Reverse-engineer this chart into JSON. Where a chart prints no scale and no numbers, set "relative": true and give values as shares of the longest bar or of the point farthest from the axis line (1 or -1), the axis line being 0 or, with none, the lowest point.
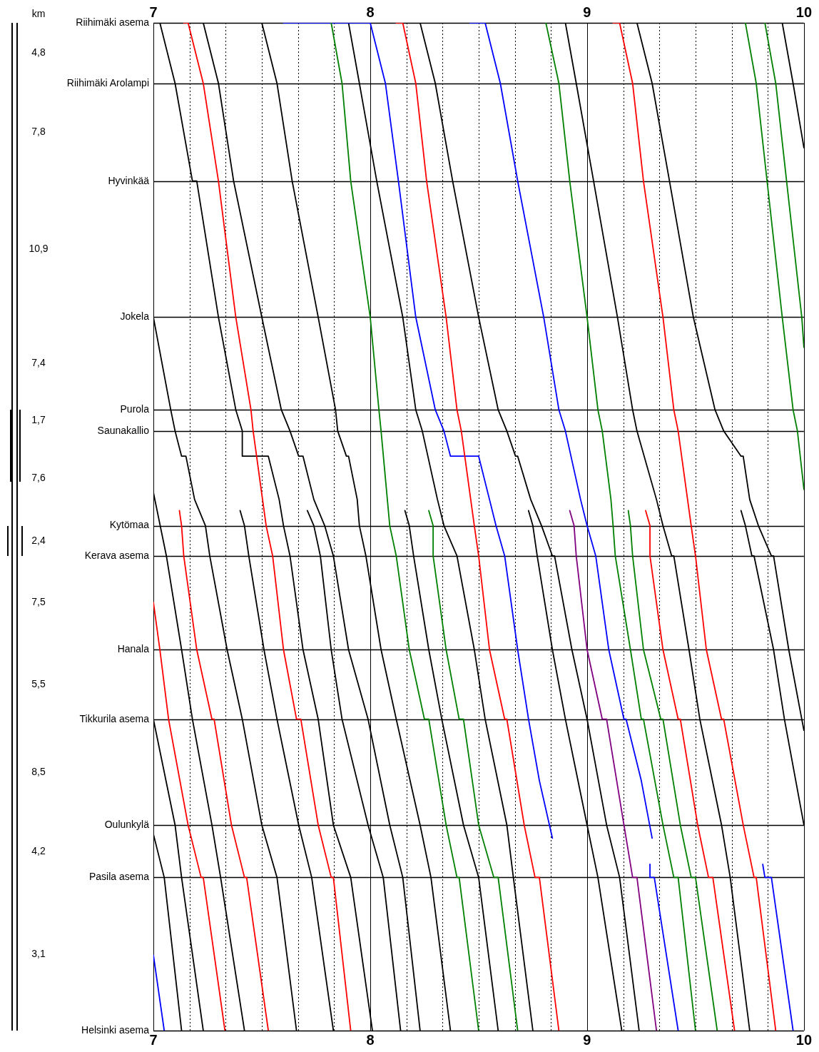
{
  "chart_data": {
    "type": "line",
    "grid": "x",
    "marker": "none",
    "relative": true,
    "xlim": [
      7,
      10
    ],
    "xticks": [
      7,
      {
        "value": 7.1667,
        "label": null
      },
      {
        "value": 7.3333,
        "label": null
      },
      {
        "value": 7.5,
        "label": null
      },
      {
        "value": 7.6667,
        "label": null
      },
      {
        "value": 7.8333,
        "label": null
      },
      8,
      {
        "value": 8.1667,
        "label": null
      },
      {
        "value": 8.3333,
        "label": null
      },
      {
        "value": 8.5,
        "label": null
      },
      {
        "value": 8.6667,
        "label": null
      },
      {
        "value": 8.8333,
        "label": null
      },
      9,
      {
        "value": 9.1667,
        "label": null
      },
      {
        "value": 9.3333,
        "label": null
      },
      {
        "value": 9.5,
        "label": null
      },
      {
        "value": 9.6667,
        "label": null
      },
      {
        "value": 9.8333,
        "label": null
      },
      10
    ],
    "x2lim": [
      7,
      10
    ],
    "x2ticks": [
      7,
      8,
      9,
      10
    ],
    "ref_lines": [
      {
        "axis": "y",
        "value": 0,
        "label": "Riihimäki asema"
      },
      {
        "axis": "y",
        "value": -0.06,
        "label": "Riihimäki Arolampi"
      },
      {
        "axis": "y",
        "value": -0.157,
        "label": "Hyvinkää"
      },
      {
        "axis": "y",
        "value": -0.292,
        "label": "Jokela"
      },
      {
        "axis": "y",
        "value": -0.384,
        "label": "Purola"
      },
      {
        "axis": "y",
        "value": -0.405,
        "label": "Saunakallio"
      },
      {
        "axis": "y",
        "value": -0.499,
        "label": "Kytömaa"
      },
      {
        "axis": "y",
        "value": -0.529,
        "label": "Kerava asema"
      },
      {
        "axis": "y",
        "value": -0.622,
        "label": "Hanala"
      },
      {
        "axis": "y",
        "value": -0.691,
        "label": "Tikkurila asema"
      },
      {
        "axis": "y",
        "value": -0.796,
        "label": "Oulunkylä"
      },
      {
        "axis": "y",
        "value": -0.848,
        "label": "Pasila asema"
      },
      {
        "axis": "y",
        "value": -1,
        "label": "Helsinki asema"
      }
    ],
    "annotations": [
      "km",
      "4,8",
      "7,8",
      "10,9",
      "7,4",
      "1,7",
      "7,6",
      "2,4",
      "7,5",
      "5,5",
      "8,5",
      "4,2",
      "3,1"
    ],
    "series": [
      {
        "color": "#ff0000",
        "x": [
          7.14,
          7.16,
          7.23,
          7.3,
          7.38,
          7.45,
          7.46,
          7.52,
          7.55,
          7.6,
          7.66,
          7.68,
          7.76,
          7.82,
          7.83,
          7.91
        ],
        "values": [
          0,
          0,
          -0.06,
          -0.157,
          -0.292,
          -0.384,
          -0.405,
          -0.499,
          -0.529,
          -0.622,
          -0.691,
          -0.691,
          -0.796,
          -0.848,
          -0.848,
          -1
        ]
      },
      {
        "color": "#ff0000",
        "x": [
          8.12,
          8.15,
          8.21,
          8.26,
          8.35,
          8.4,
          8.42,
          8.48,
          8.5,
          8.55,
          8.62,
          8.63,
          8.71,
          8.76,
          8.78,
          8.87
        ],
        "values": [
          0,
          0,
          -0.06,
          -0.157,
          -0.292,
          -0.384,
          -0.405,
          -0.499,
          -0.529,
          -0.622,
          -0.691,
          -0.691,
          -0.796,
          -0.848,
          -0.848,
          -1
        ]
      },
      {
        "color": "#ff0000",
        "x": [
          9.12,
          9.15,
          9.21,
          9.26,
          9.35,
          9.4,
          9.42,
          9.48,
          9.5,
          9.55,
          9.62,
          9.63,
          9.72,
          9.77,
          9.78,
          9.87
        ],
        "values": [
          0,
          0,
          -0.06,
          -0.157,
          -0.292,
          -0.384,
          -0.405,
          -0.499,
          -0.529,
          -0.622,
          -0.691,
          -0.691,
          -0.796,
          -0.848,
          -0.848,
          -1
        ]
      },
      {
        "color": "#ff0000",
        "x": [
          7.12,
          7.13,
          7.14,
          7.2,
          7.27,
          7.28,
          7.36,
          7.42,
          7.43,
          7.53
        ],
        "values": [
          -0.484,
          -0.499,
          -0.529,
          -0.622,
          -0.691,
          -0.691,
          -0.796,
          -0.848,
          -0.848,
          -1
        ]
      },
      {
        "color": "#ff0000",
        "x": [
          7.0,
          7.03,
          7.07,
          7.16,
          7.22,
          7.23,
          7.33
        ],
        "values": [
          -0.575,
          -0.622,
          -0.691,
          -0.796,
          -0.848,
          -0.848,
          -1
        ]
      },
      {
        "color": "#ff0000",
        "x": [
          9.27,
          9.29,
          9.29,
          9.35,
          9.42,
          9.43,
          9.51,
          9.56,
          9.58,
          9.68
        ],
        "values": [
          -0.484,
          -0.499,
          -0.529,
          -0.622,
          -0.691,
          -0.691,
          -0.796,
          -0.848,
          -0.848,
          -1
        ]
      },
      {
        "color": "#008000",
        "x": [
          7.82,
          7.87,
          7.91,
          8.0,
          8.04,
          8.05,
          8.09,
          8.12,
          8.18,
          8.25,
          8.27,
          8.35,
          8.4,
          8.41,
          8.5
        ],
        "values": [
          0,
          -0.06,
          -0.157,
          -0.292,
          -0.384,
          -0.405,
          -0.499,
          -0.529,
          -0.622,
          -0.691,
          -0.691,
          -0.796,
          -0.848,
          -0.848,
          -1
        ]
      },
      {
        "color": "#008000",
        "x": [
          8.27,
          8.29,
          8.29,
          8.35,
          8.41,
          8.43,
          8.5,
          8.57,
          8.59,
          8.68
        ],
        "values": [
          -0.484,
          -0.499,
          -0.529,
          -0.622,
          -0.691,
          -0.691,
          -0.796,
          -0.848,
          -0.848,
          -1
        ]
      },
      {
        "color": "#008000",
        "x": [
          8.81,
          8.87,
          8.92,
          9.0,
          9.05,
          9.07,
          9.11,
          9.12,
          9.13,
          9.2,
          9.25,
          9.26,
          9.35,
          9.4,
          9.42,
          9.5
        ],
        "values": [
          0,
          -0.06,
          -0.157,
          -0.292,
          -0.384,
          -0.405,
          -0.473,
          -0.499,
          -0.529,
          -0.622,
          -0.691,
          -0.691,
          -0.796,
          -0.848,
          -0.848,
          -1
        ]
      },
      {
        "color": "#008000",
        "x": [
          9.19,
          9.2,
          9.21,
          9.26,
          9.34,
          9.35,
          9.43,
          9.48,
          9.5,
          9.6
        ],
        "values": [
          -0.484,
          -0.499,
          -0.529,
          -0.622,
          -0.691,
          -0.691,
          -0.796,
          -0.848,
          -0.848,
          -1
        ]
      },
      {
        "color": "#008000",
        "x": [
          9.73,
          9.78,
          9.83,
          9.9,
          9.95,
          9.97,
          10.0
        ],
        "values": [
          0,
          -0.06,
          -0.157,
          -0.292,
          -0.384,
          -0.405,
          -0.463
        ]
      },
      {
        "color": "#008000",
        "x": [
          9.82,
          9.87,
          9.92,
          9.99,
          10.0
        ],
        "values": [
          0,
          -0.06,
          -0.157,
          -0.292,
          -0.322
        ]
      },
      {
        "color": "#0000ff",
        "x": [
          7.6,
          8.0,
          8.07,
          8.13,
          8.21,
          8.3,
          8.34,
          8.37,
          8.5,
          8.55,
          8.58,
          8.62,
          8.68,
          8.73,
          8.78,
          8.84
        ],
        "values": [
          0,
          0,
          -0.06,
          -0.157,
          -0.292,
          -0.384,
          -0.405,
          -0.43,
          -0.43,
          -0.473,
          -0.499,
          -0.529,
          -0.622,
          -0.691,
          -0.752,
          -0.809
        ]
      },
      {
        "color": "#0000ff",
        "x": [
          8.46,
          8.53,
          8.6,
          8.68,
          8.8,
          8.87,
          8.9,
          8.97,
          9.0,
          9.04,
          9.1,
          9.17,
          9.18,
          9.25,
          9.3
        ],
        "values": [
          0,
          0,
          -0.06,
          -0.157,
          -0.292,
          -0.384,
          -0.405,
          -0.473,
          -0.499,
          -0.529,
          -0.622,
          -0.691,
          -0.691,
          -0.752,
          -0.809
        ]
      },
      {
        "color": "#0000ff",
        "x": [
          9.29,
          9.29,
          9.31,
          9.42
        ],
        "values": [
          -0.835,
          -0.848,
          -0.848,
          -1
        ]
      },
      {
        "color": "#0000ff",
        "x": [
          9.81,
          9.82,
          9.85,
          9.95
        ],
        "values": [
          -0.835,
          -0.848,
          -0.848,
          -1
        ]
      },
      {
        "color": "#0000ff",
        "x": [
          7.0,
          7.05
        ],
        "values": [
          -0.925,
          -1
        ]
      },
      {
        "color": "#800080",
        "x": [
          8.92,
          8.94,
          8.95,
          9.0,
          9.07,
          9.09,
          9.17,
          9.21,
          9.23,
          9.32
        ],
        "values": [
          -0.484,
          -0.499,
          -0.529,
          -0.622,
          -0.691,
          -0.691,
          -0.796,
          -0.848,
          -0.848,
          -1
        ]
      },
      {
        "color": "#000000",
        "x": [
          7.0,
          7.06,
          7.13,
          7.18,
          7.27,
          7.31,
          7.42
        ],
        "values": [
          -0.466,
          -0.529,
          -0.622,
          -0.691,
          -0.796,
          -0.848,
          -1
        ]
      },
      {
        "color": "#000000",
        "x": [
          7.0,
          7.1,
          7.13,
          7.23
        ],
        "values": [
          -0.691,
          -0.796,
          -0.848,
          -1
        ]
      },
      {
        "color": "#000000",
        "x": [
          7.0,
          7.05,
          7.13
        ],
        "values": [
          -0.805,
          -0.848,
          -1
        ]
      },
      {
        "color": "#000000",
        "x": [
          7.0,
          7.08,
          7.1,
          7.13,
          7.15,
          7.19,
          7.24,
          7.26,
          7.34,
          7.41,
          7.5,
          7.57,
          7.66
        ],
        "values": [
          -0.292,
          -0.384,
          -0.405,
          -0.43,
          -0.43,
          -0.473,
          -0.499,
          -0.529,
          -0.622,
          -0.691,
          -0.796,
          -0.848,
          -1
        ]
      },
      {
        "color": "#000000",
        "x": [
          7.4,
          7.42,
          7.44,
          7.51,
          7.57,
          7.67,
          7.73,
          7.83
        ],
        "values": [
          -0.484,
          -0.499,
          -0.529,
          -0.622,
          -0.691,
          -0.796,
          -0.848,
          -1
        ]
      },
      {
        "color": "#000000",
        "x": [
          7.03,
          7.1,
          7.18,
          7.2,
          7.3,
          7.38,
          7.41,
          7.41,
          7.53,
          7.58,
          7.6,
          7.63,
          7.69,
          7.76,
          7.83,
          7.91,
          8.01
        ],
        "values": [
          0,
          -0.06,
          -0.157,
          -0.157,
          -0.292,
          -0.384,
          -0.405,
          -0.43,
          -0.43,
          -0.473,
          -0.499,
          -0.529,
          -0.622,
          -0.691,
          -0.796,
          -0.848,
          -1
        ]
      },
      {
        "color": "#000000",
        "x": [
          7.71,
          7.74,
          7.77,
          7.82,
          7.87,
          7.99,
          8.06,
          8.14
        ],
        "values": [
          -0.484,
          -0.499,
          -0.529,
          -0.622,
          -0.691,
          -0.796,
          -0.848,
          -1
        ]
      },
      {
        "color": "#000000",
        "x": [
          7.23,
          7.3,
          7.37,
          7.5,
          7.59,
          7.63,
          7.67,
          7.69,
          7.74,
          7.79,
          7.83,
          7.9,
          7.99,
          8.09,
          8.15,
          8.23
        ],
        "values": [
          0,
          -0.06,
          -0.157,
          -0.292,
          -0.384,
          -0.405,
          -0.43,
          -0.43,
          -0.473,
          -0.499,
          -0.529,
          -0.622,
          -0.691,
          -0.796,
          -0.848,
          -1
        ]
      },
      {
        "color": "#000000",
        "x": [
          7.5,
          7.57,
          7.64,
          7.76,
          7.84,
          7.85,
          7.89,
          7.9,
          7.94,
          7.95,
          7.98,
          8.05,
          8.12,
          8.23,
          8.28,
          8.37
        ],
        "values": [
          0,
          -0.06,
          -0.157,
          -0.292,
          -0.384,
          -0.405,
          -0.43,
          -0.43,
          -0.473,
          -0.499,
          -0.529,
          -0.622,
          -0.691,
          -0.796,
          -0.848,
          -1
        ]
      },
      {
        "color": "#000000",
        "x": [
          8.16,
          8.18,
          8.2,
          8.27,
          8.33,
          8.43,
          8.5,
          8.59
        ],
        "values": [
          -0.484,
          -0.499,
          -0.529,
          -0.622,
          -0.691,
          -0.796,
          -0.848,
          -1
        ]
      },
      {
        "color": "#000000",
        "x": [
          7.9,
          7.95,
          8.03,
          8.15,
          8.21,
          8.24,
          8.31,
          8.34,
          8.4,
          8.48,
          8.53,
          8.63,
          8.66,
          8.75
        ],
        "values": [
          0,
          -0.06,
          -0.157,
          -0.292,
          -0.384,
          -0.405,
          -0.473,
          -0.499,
          -0.529,
          -0.622,
          -0.691,
          -0.796,
          -0.848,
          -1
        ]
      },
      {
        "color": "#000000",
        "x": [
          8.23,
          8.3,
          8.38,
          8.5,
          8.59,
          8.63,
          8.67,
          8.68,
          8.74,
          8.79,
          8.84,
          8.85,
          8.93,
          9.0,
          9.09,
          9.15,
          9.24
        ],
        "values": [
          0,
          -0.06,
          -0.157,
          -0.292,
          -0.384,
          -0.405,
          -0.43,
          -0.43,
          -0.473,
          -0.499,
          -0.529,
          -0.529,
          -0.622,
          -0.691,
          -0.796,
          -0.848,
          -1
        ]
      },
      {
        "color": "#000000",
        "x": [
          8.73,
          8.75,
          8.77,
          8.84,
          8.9,
          9.0,
          9.05,
          9.16
        ],
        "values": [
          -0.484,
          -0.499,
          -0.529,
          -0.622,
          -0.691,
          -0.796,
          -0.848,
          -1
        ]
      },
      {
        "color": "#000000",
        "x": [
          8.9,
          8.95,
          9.03,
          9.14,
          9.21,
          9.23,
          9.32,
          9.35,
          9.39,
          9.4,
          9.47,
          9.52,
          9.62,
          9.66,
          9.75
        ],
        "values": [
          0,
          -0.06,
          -0.157,
          -0.292,
          -0.384,
          -0.405,
          -0.473,
          -0.499,
          -0.529,
          -0.529,
          -0.622,
          -0.691,
          -0.796,
          -0.848,
          -1
        ]
      },
      {
        "color": "#000000",
        "x": [
          9.71,
          9.73,
          9.76,
          9.77,
          9.86,
          9.91,
          10.0
        ],
        "values": [
          -0.484,
          -0.499,
          -0.529,
          -0.529,
          -0.622,
          -0.691,
          -0.796
        ]
      },
      {
        "color": "#000000",
        "x": [
          9.23,
          9.3,
          9.38,
          9.49,
          9.59,
          9.63,
          9.71,
          9.72,
          9.75,
          9.79,
          9.85,
          9.86,
          9.93,
          9.99,
          10.0
        ],
        "values": [
          0,
          -0.06,
          -0.157,
          -0.292,
          -0.384,
          -0.405,
          -0.43,
          -0.43,
          -0.473,
          -0.499,
          -0.529,
          -0.529,
          -0.622,
          -0.691,
          -0.702
        ]
      },
      {
        "color": "#000000",
        "x": [
          9.9,
          9.95,
          10.0
        ],
        "values": [
          0,
          -0.06,
          -0.124
        ]
      }
    ]
  }
}
